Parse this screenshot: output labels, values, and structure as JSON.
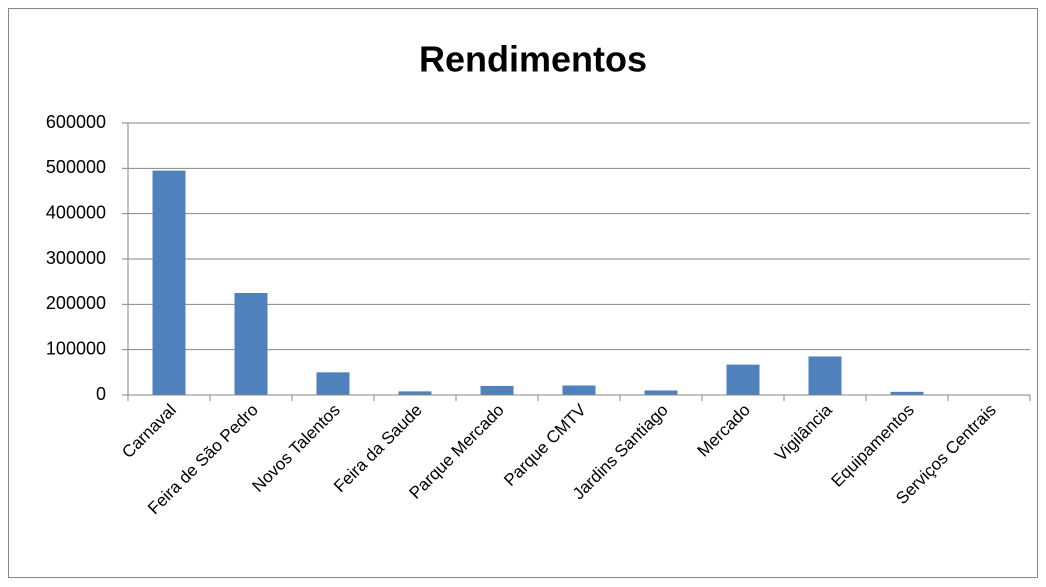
{
  "chart_data": {
    "type": "bar",
    "title": "Rendimentos",
    "categories": [
      "Carnaval",
      "Feira de São Pedro",
      "Novos Talentos",
      "Feira da Saude",
      "Parque Mercado",
      "Parque CMTV",
      "Jardins Santiago",
      "Mercado",
      "Vigilância",
      "Equipamentos",
      "Serviços Centrais"
    ],
    "values": [
      495000,
      225000,
      50000,
      8000,
      20000,
      21000,
      10000,
      67000,
      85000,
      7000,
      0
    ],
    "color": "#4f81bd",
    "ylim": [
      0,
      600000
    ],
    "yticks": [
      0,
      100000,
      200000,
      300000,
      400000,
      500000,
      600000
    ],
    "grid": true
  }
}
